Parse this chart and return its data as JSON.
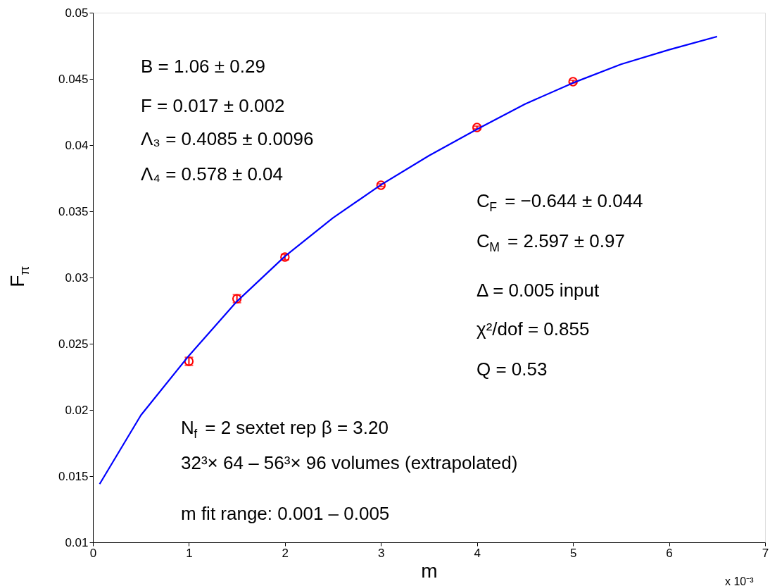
{
  "chart_data": {
    "type": "scatter",
    "xlabel": "m",
    "ylabel": "F$_{π}$",
    "x": [
      1,
      1.5,
      2,
      3,
      4,
      5
    ],
    "series": [
      {
        "color": "#ff0000",
        "marker": "circle",
        "values": [
          0.02367,
          0.0284,
          0.03154,
          0.03697,
          0.04133,
          0.04479
        ],
        "errors": [
          0.0003,
          0.0003,
          0.0002,
          0.0001,
          0.0001,
          0.0001
        ]
      },
      {
        "type": "line",
        "color": "#0000ff",
        "marker": "none",
        "line_style": "solid",
        "x": [
          0.07,
          0.5,
          1,
          1.5,
          2,
          2.5,
          3,
          3.5,
          4,
          4.5,
          5,
          5.5,
          6,
          6.5
        ],
        "values": [
          0.0144,
          0.0196,
          0.0241,
          0.0282,
          0.0316,
          0.0345,
          0.037,
          0.0392,
          0.0412,
          0.0431,
          0.0447,
          0.0461,
          0.0472,
          0.0482
        ]
      }
    ],
    "xlim": [
      0,
      7
    ],
    "xticks": [
      0,
      1,
      2,
      3,
      4,
      5,
      6,
      7
    ],
    "ylim": [
      0.01,
      0.05
    ],
    "yticks": [
      0.01,
      0.015,
      0.02,
      0.025,
      0.03,
      0.035,
      0.04,
      0.045,
      0.05
    ],
    "annotations": [
      "B = 1.06 ± 0.29",
      "F = 0.017 ± 0.002",
      "Λ₃ = 0.4085 ± 0.0096",
      "Λ₄ = 0.578 ± 0.04",
      "C$_{F}$ = −0.644 ± 0.044",
      "C$_{M}$ = 2.597 ± 0.97",
      "Δ = 0.005 input",
      "χ²/dof = 0.855",
      "Q = 0.53",
      "N$_{f}$ = 2 sextet rep β = 3.20",
      "32³× 64 – 56³× 96 volumes (extrapolated)",
      "m fit range: 0.001 – 0.005",
      "x 10⁻³"
    ]
  }
}
